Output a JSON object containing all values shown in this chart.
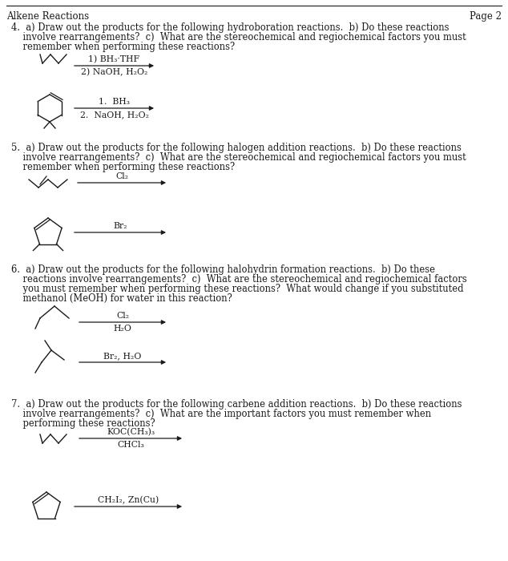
{
  "background": "#ffffff",
  "text_color": "#1a1a1a",
  "header_left": "Alkene Reactions",
  "header_right": "Page 2",
  "q4_line1": "4.  a) Draw out the products for the following hydroboration reactions.  b) Do these reactions",
  "q4_line2": "    involve rearrangements?  c)  What are the stereochemical and regiochemical factors you must",
  "q4_line3": "    remember when performing these reactions?",
  "q4_rxn1_top": "1) BH₃·THF",
  "q4_rxn1_bot": "2) NaOH, H₂O₂",
  "q4_rxn2_top": "1.  BH₃",
  "q4_rxn2_bot": "2.  NaOH, H₂O₂",
  "q5_line1": "5.  a) Draw out the products for the following halogen addition reactions.  b) Do these reactions",
  "q5_line2": "    involve rearrangements?  c)  What are the stereochemical and regiochemical factors you must",
  "q5_line3": "    remember when performing these reactions?",
  "q5_rxn1_label": "Cl₂",
  "q5_rxn2_label": "Br₂",
  "q6_line1": "6.  a) Draw out the products for the following halohydrin formation reactions.  b) Do these",
  "q6_line2": "    reactions involve rearrangements?  c)  What are the stereochemical and regiochemical factors",
  "q6_line3": "    you must remember when performing these reactions?  What would change if you substituted",
  "q6_line4": "    methanol (MeOH) for water in this reaction?",
  "q6_rxn1_top": "Cl₂",
  "q6_rxn1_bot": "H₂O",
  "q6_rxn2_label": "Br₂, H₂O",
  "q7_line1": "7.  a) Draw out the products for the following carbene addition reactions.  b) Do these reactions",
  "q7_line2": "    involve rearrangements?  c)  What are the important factors you must remember when",
  "q7_line3": "    performing these reactions?",
  "q7_rxn1_top": "KOC(CH₃)₃",
  "q7_rxn1_bot": "CHCl₃",
  "q7_rxn2_label": "CH₂I₂, Zn(Cu)"
}
